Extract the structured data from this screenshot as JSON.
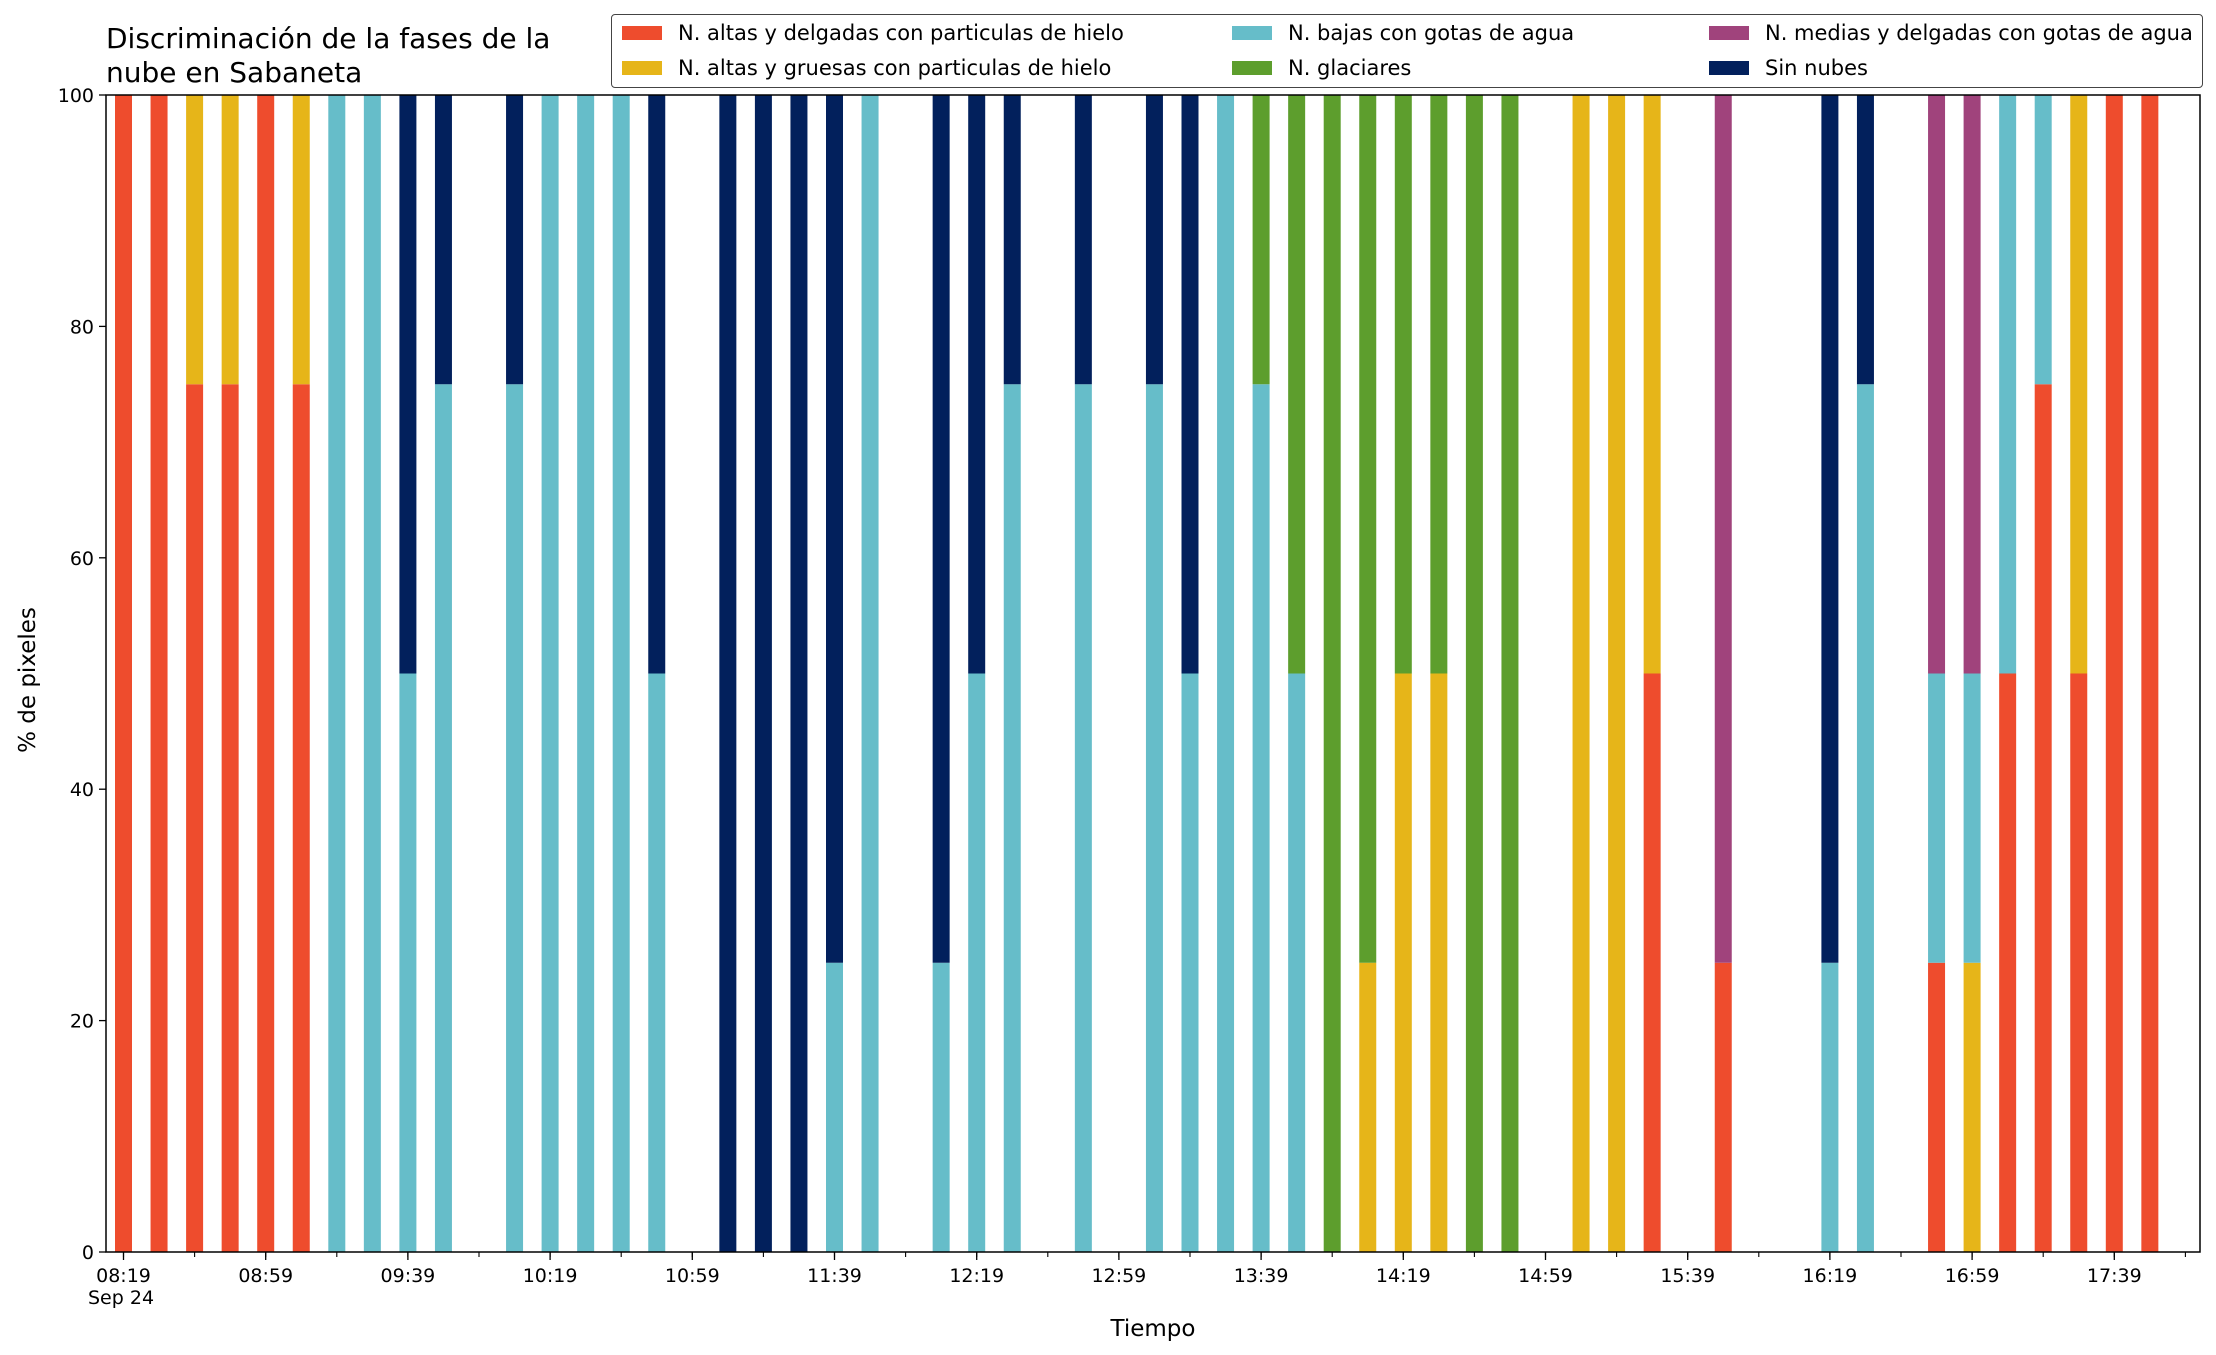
{
  "chart_data": {
    "type": "bar",
    "stacked": true,
    "title_line1": "Discriminación de la fases de la",
    "title_line2": "nube en Sabaneta",
    "xlabel": "Tiempo",
    "ylabel": "% de pixeles",
    "ylim": [
      0,
      100
    ],
    "yticks": [
      0,
      20,
      40,
      60,
      80,
      100
    ],
    "date_label": "Sep 24",
    "x_start": "08:19",
    "interval_minutes": 10,
    "xtick_labels": [
      "08:19",
      "08:59",
      "09:39",
      "10:19",
      "10:59",
      "11:39",
      "12:19",
      "12:59",
      "13:39",
      "14:19",
      "14:59",
      "15:39",
      "16:19",
      "16:59",
      "17:39"
    ],
    "legend_placement": "top-right",
    "grid": false,
    "series": [
      {
        "name": "N. altas y delgadas con particulas de hielo",
        "color": "#ee4c2d"
      },
      {
        "name": "N. altas y gruesas con particulas de hielo",
        "color": "#e6b519"
      },
      {
        "name": "N. bajas con gotas de agua",
        "color": "#66bdc9"
      },
      {
        "name": "N. glaciares",
        "color": "#5d9e2d"
      },
      {
        "name": "N. medias y delgadas con gotas de agua",
        "color": "#a0437c"
      },
      {
        "name": "Sin nubes",
        "color": "#02205c"
      }
    ],
    "bars": [
      {
        "time": "08:19",
        "values": [
          100,
          0,
          0,
          0,
          0,
          0
        ]
      },
      {
        "time": "08:29",
        "values": [
          100,
          0,
          0,
          0,
          0,
          0
        ]
      },
      {
        "time": "08:39",
        "values": [
          75,
          25,
          0,
          0,
          0,
          0
        ]
      },
      {
        "time": "08:49",
        "values": [
          75,
          25,
          0,
          0,
          0,
          0
        ]
      },
      {
        "time": "08:59",
        "values": [
          100,
          0,
          0,
          0,
          0,
          0
        ]
      },
      {
        "time": "09:09",
        "values": [
          75,
          25,
          0,
          0,
          0,
          0
        ]
      },
      {
        "time": "09:19",
        "values": [
          0,
          0,
          100,
          0,
          0,
          0
        ]
      },
      {
        "time": "09:29",
        "values": [
          0,
          0,
          100,
          0,
          0,
          0
        ]
      },
      {
        "time": "09:39",
        "values": [
          0,
          0,
          50,
          0,
          0,
          50
        ]
      },
      {
        "time": "09:49",
        "values": [
          0,
          0,
          75,
          0,
          0,
          25
        ]
      },
      {
        "time": "10:09",
        "values": [
          0,
          0,
          75,
          0,
          0,
          25
        ]
      },
      {
        "time": "10:19",
        "values": [
          0,
          0,
          100,
          0,
          0,
          0
        ]
      },
      {
        "time": "10:29",
        "values": [
          0,
          0,
          100,
          0,
          0,
          0
        ]
      },
      {
        "time": "10:39",
        "values": [
          0,
          0,
          100,
          0,
          0,
          0
        ]
      },
      {
        "time": "10:49",
        "values": [
          0,
          0,
          50,
          0,
          0,
          50
        ]
      },
      {
        "time": "11:09",
        "values": [
          0,
          0,
          0,
          0,
          0,
          100
        ]
      },
      {
        "time": "11:19",
        "values": [
          0,
          0,
          0,
          0,
          0,
          100
        ]
      },
      {
        "time": "11:29",
        "values": [
          0,
          0,
          0,
          0,
          0,
          100
        ]
      },
      {
        "time": "11:39",
        "values": [
          0,
          0,
          25,
          0,
          0,
          75
        ]
      },
      {
        "time": "11:49",
        "values": [
          0,
          0,
          100,
          0,
          0,
          0
        ]
      },
      {
        "time": "12:09",
        "values": [
          0,
          0,
          25,
          0,
          0,
          75
        ]
      },
      {
        "time": "12:19",
        "values": [
          0,
          0,
          50,
          0,
          0,
          50
        ]
      },
      {
        "time": "12:29",
        "values": [
          0,
          0,
          75,
          0,
          0,
          25
        ]
      },
      {
        "time": "12:49",
        "values": [
          0,
          0,
          75,
          0,
          0,
          25
        ]
      },
      {
        "time": "13:09",
        "values": [
          0,
          0,
          75,
          0,
          0,
          25
        ]
      },
      {
        "time": "13:19",
        "values": [
          0,
          0,
          50,
          0,
          0,
          50
        ]
      },
      {
        "time": "13:29",
        "values": [
          0,
          0,
          100,
          0,
          0,
          0
        ]
      },
      {
        "time": "13:39",
        "values": [
          0,
          0,
          75,
          25,
          0,
          0
        ]
      },
      {
        "time": "13:49",
        "values": [
          0,
          0,
          50,
          50,
          0,
          0
        ]
      },
      {
        "time": "13:59",
        "values": [
          0,
          0,
          0,
          100,
          0,
          0
        ]
      },
      {
        "time": "14:09",
        "values": [
          0,
          25,
          0,
          75,
          0,
          0
        ]
      },
      {
        "time": "14:19",
        "values": [
          0,
          50,
          0,
          50,
          0,
          0
        ]
      },
      {
        "time": "14:29",
        "values": [
          0,
          50,
          0,
          50,
          0,
          0
        ]
      },
      {
        "time": "14:39",
        "values": [
          0,
          0,
          0,
          100,
          0,
          0
        ]
      },
      {
        "time": "14:49",
        "values": [
          0,
          0,
          0,
          100,
          0,
          0
        ]
      },
      {
        "time": "15:09",
        "values": [
          0,
          100,
          0,
          0,
          0,
          0
        ]
      },
      {
        "time": "15:19",
        "values": [
          0,
          100,
          0,
          0,
          0,
          0
        ]
      },
      {
        "time": "15:29",
        "values": [
          50,
          50,
          0,
          0,
          0,
          0
        ]
      },
      {
        "time": "15:49",
        "values": [
          25,
          0,
          0,
          0,
          75,
          0
        ]
      },
      {
        "time": "16:19",
        "values": [
          0,
          0,
          25,
          0,
          0,
          75
        ]
      },
      {
        "time": "16:29",
        "values": [
          0,
          0,
          75,
          0,
          0,
          25
        ]
      },
      {
        "time": "16:49",
        "values": [
          25,
          0,
          25,
          0,
          50,
          0
        ]
      },
      {
        "time": "16:59",
        "values": [
          0,
          25,
          25,
          0,
          50,
          0
        ]
      },
      {
        "time": "17:09",
        "values": [
          50,
          0,
          50,
          0,
          0,
          0
        ]
      },
      {
        "time": "17:19",
        "values": [
          75,
          0,
          25,
          0,
          0,
          0
        ]
      },
      {
        "time": "17:29",
        "values": [
          50,
          50,
          0,
          0,
          0,
          0
        ]
      },
      {
        "time": "17:39",
        "values": [
          100,
          0,
          0,
          0,
          0,
          0
        ]
      },
      {
        "time": "17:49",
        "values": [
          100,
          0,
          0,
          0,
          0,
          0
        ]
      }
    ]
  }
}
